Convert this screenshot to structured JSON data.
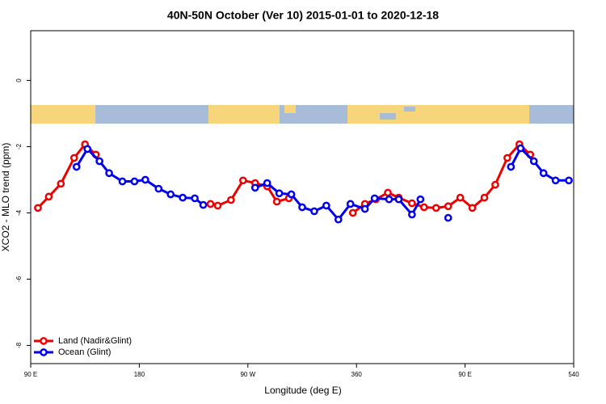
{
  "chart_data": {
    "type": "line",
    "title": "40N-50N October (Ver 10)   2015-01-01 to 2020-12-18",
    "x_label": "Longitude (deg E)",
    "y_label": "XCO2 - MLO trend (ppm)",
    "xlim": [
      90,
      540
    ],
    "ylim": [
      -8.55,
      1.5
    ],
    "xticks": [
      {
        "value": 90,
        "label": "90 E"
      },
      180,
      {
        "value": 270,
        "label": "90 W"
      },
      360,
      {
        "value": 450,
        "label": "90 E"
      },
      540
    ],
    "yticks": [
      -8,
      -6,
      -4,
      -2,
      0
    ],
    "legend": "bottom-left",
    "series": [
      {
        "name": "Land (Nadir&Glint)",
        "color": "#ee0000",
        "x": [
          96,
          105,
          115,
          126,
          135,
          144,
          null,
          239,
          245,
          256,
          266,
          276,
          286,
          294,
          304,
          null,
          357,
          367,
          376,
          386,
          395,
          406,
          416,
          426,
          436,
          446,
          456,
          466,
          475,
          485,
          495,
          504
        ],
        "values": [
          -3.85,
          -3.51,
          -3.12,
          -2.34,
          -1.93,
          -2.24,
          null,
          -3.73,
          -3.78,
          -3.61,
          -3.02,
          -3.1,
          -3.2,
          -3.66,
          -3.56,
          null,
          -4.0,
          -3.73,
          -3.59,
          -3.39,
          -3.54,
          -3.71,
          -3.83,
          -3.85,
          -3.8,
          -3.54,
          -3.85,
          -3.54,
          -3.15,
          -2.34,
          -1.93,
          -2.24
        ]
      },
      {
        "name": "Ocean (Glint)",
        "color": "#0000ee",
        "x": [
          128,
          137,
          147,
          155,
          166,
          176,
          185,
          196,
          206,
          216,
          226,
          233,
          null,
          276,
          286,
          296,
          306,
          315,
          325,
          335,
          345,
          355,
          367,
          375,
          387,
          395,
          406,
          413,
          null,
          436,
          null,
          488,
          496,
          507,
          515,
          525,
          536
        ],
        "values": [
          -2.61,
          -2.07,
          -2.44,
          -2.8,
          -3.05,
          -3.05,
          -3.0,
          -3.27,
          -3.44,
          -3.54,
          -3.56,
          -3.76,
          null,
          -3.24,
          -3.1,
          -3.41,
          -3.44,
          -3.83,
          -3.95,
          -3.78,
          -4.2,
          -3.73,
          -3.88,
          -3.56,
          -3.59,
          -3.59,
          -4.05,
          -3.59,
          null,
          -4.15,
          null,
          -2.61,
          -2.05,
          -2.44,
          -2.8,
          -3.02,
          -3.02
        ]
      }
    ]
  }
}
